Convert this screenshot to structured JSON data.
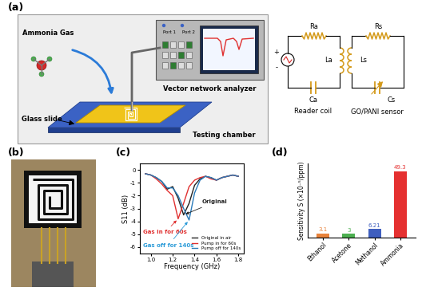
{
  "panel_labels": [
    "(a)",
    "(b)",
    "(c)",
    "(d)"
  ],
  "schematic": {
    "gas_label": "Ammonia Gas",
    "slide_label": "Glass slide",
    "chamber_label": "Testing chamber",
    "instrument_label": "Vector network analyzer",
    "ports": [
      "Port 1",
      "Port 2"
    ]
  },
  "circuit": {
    "source_signs": [
      "+",
      "-"
    ],
    "reader": {
      "components": [
        "Ra",
        "La",
        "Ca"
      ],
      "label": "Reader coil"
    },
    "sensor": {
      "components": [
        "Rs",
        "Ls",
        "Cs"
      ],
      "label": "GO/PANI sensor"
    }
  },
  "chart_data": [
    {
      "type": "line",
      "x_label": "Frequency (GHz)",
      "y_label": "S11 (dB)",
      "x": [
        0.95,
        1.0,
        1.05,
        1.1,
        1.15,
        1.2,
        1.25,
        1.3,
        1.35,
        1.4,
        1.45,
        1.5,
        1.55,
        1.6,
        1.65,
        1.7,
        1.75,
        1.8
      ],
      "series": [
        {
          "name": "Original in air",
          "color": "#222222",
          "values": [
            -0.3,
            -0.4,
            -0.6,
            -0.9,
            -1.5,
            -1.3,
            -2.2,
            -3.5,
            -2.6,
            -1.2,
            -0.7,
            -0.5,
            -0.6,
            -0.8,
            -0.6,
            -0.5,
            -0.4,
            -0.5
          ]
        },
        {
          "name": "Pump in for 60s",
          "color": "#e03030",
          "values": [
            -0.3,
            -0.4,
            -0.7,
            -1.1,
            -1.6,
            -2.0,
            -3.8,
            -2.6,
            -1.3,
            -0.8,
            -0.6,
            -0.5,
            -0.7,
            -0.8,
            -0.6,
            -0.5,
            -0.4,
            -0.5
          ]
        },
        {
          "name": "Pump off for 140s",
          "color": "#2b7bba",
          "values": [
            -0.3,
            -0.4,
            -0.6,
            -0.9,
            -1.4,
            -1.4,
            -2.0,
            -3.0,
            -3.9,
            -1.8,
            -0.8,
            -0.5,
            -0.6,
            -0.8,
            -0.6,
            -0.5,
            -0.4,
            -0.5
          ]
        }
      ],
      "xlim": [
        0.9,
        1.85
      ],
      "xticks": [
        1.0,
        1.2,
        1.4,
        1.6,
        1.8
      ],
      "ylim": [
        -6.5,
        0.5
      ],
      "yticks": [
        0,
        -1,
        -2,
        -3,
        -4,
        -5,
        -6
      ],
      "legend": "lower right",
      "annotations": [
        {
          "text": "Original",
          "color": "#222222"
        },
        {
          "text": "Gas in for 60s",
          "color": "#e03030"
        },
        {
          "text": "Gas off for 140s",
          "color": "#2b9bd8"
        }
      ]
    },
    {
      "type": "bar",
      "y_label": "Sensitivity S (×10⁻⁵/ppm)",
      "categories": [
        "Ethanol",
        "Acetone",
        "Methanol",
        "Ammonia"
      ],
      "values": [
        3.1,
        3,
        6.21,
        49.3
      ],
      "colors": [
        "#e8823a",
        "#4caf50",
        "#3f5fbf",
        "#e53030"
      ],
      "ylim": [
        0,
        55
      ],
      "data_labels": true,
      "tick_labels": "x"
    }
  ]
}
